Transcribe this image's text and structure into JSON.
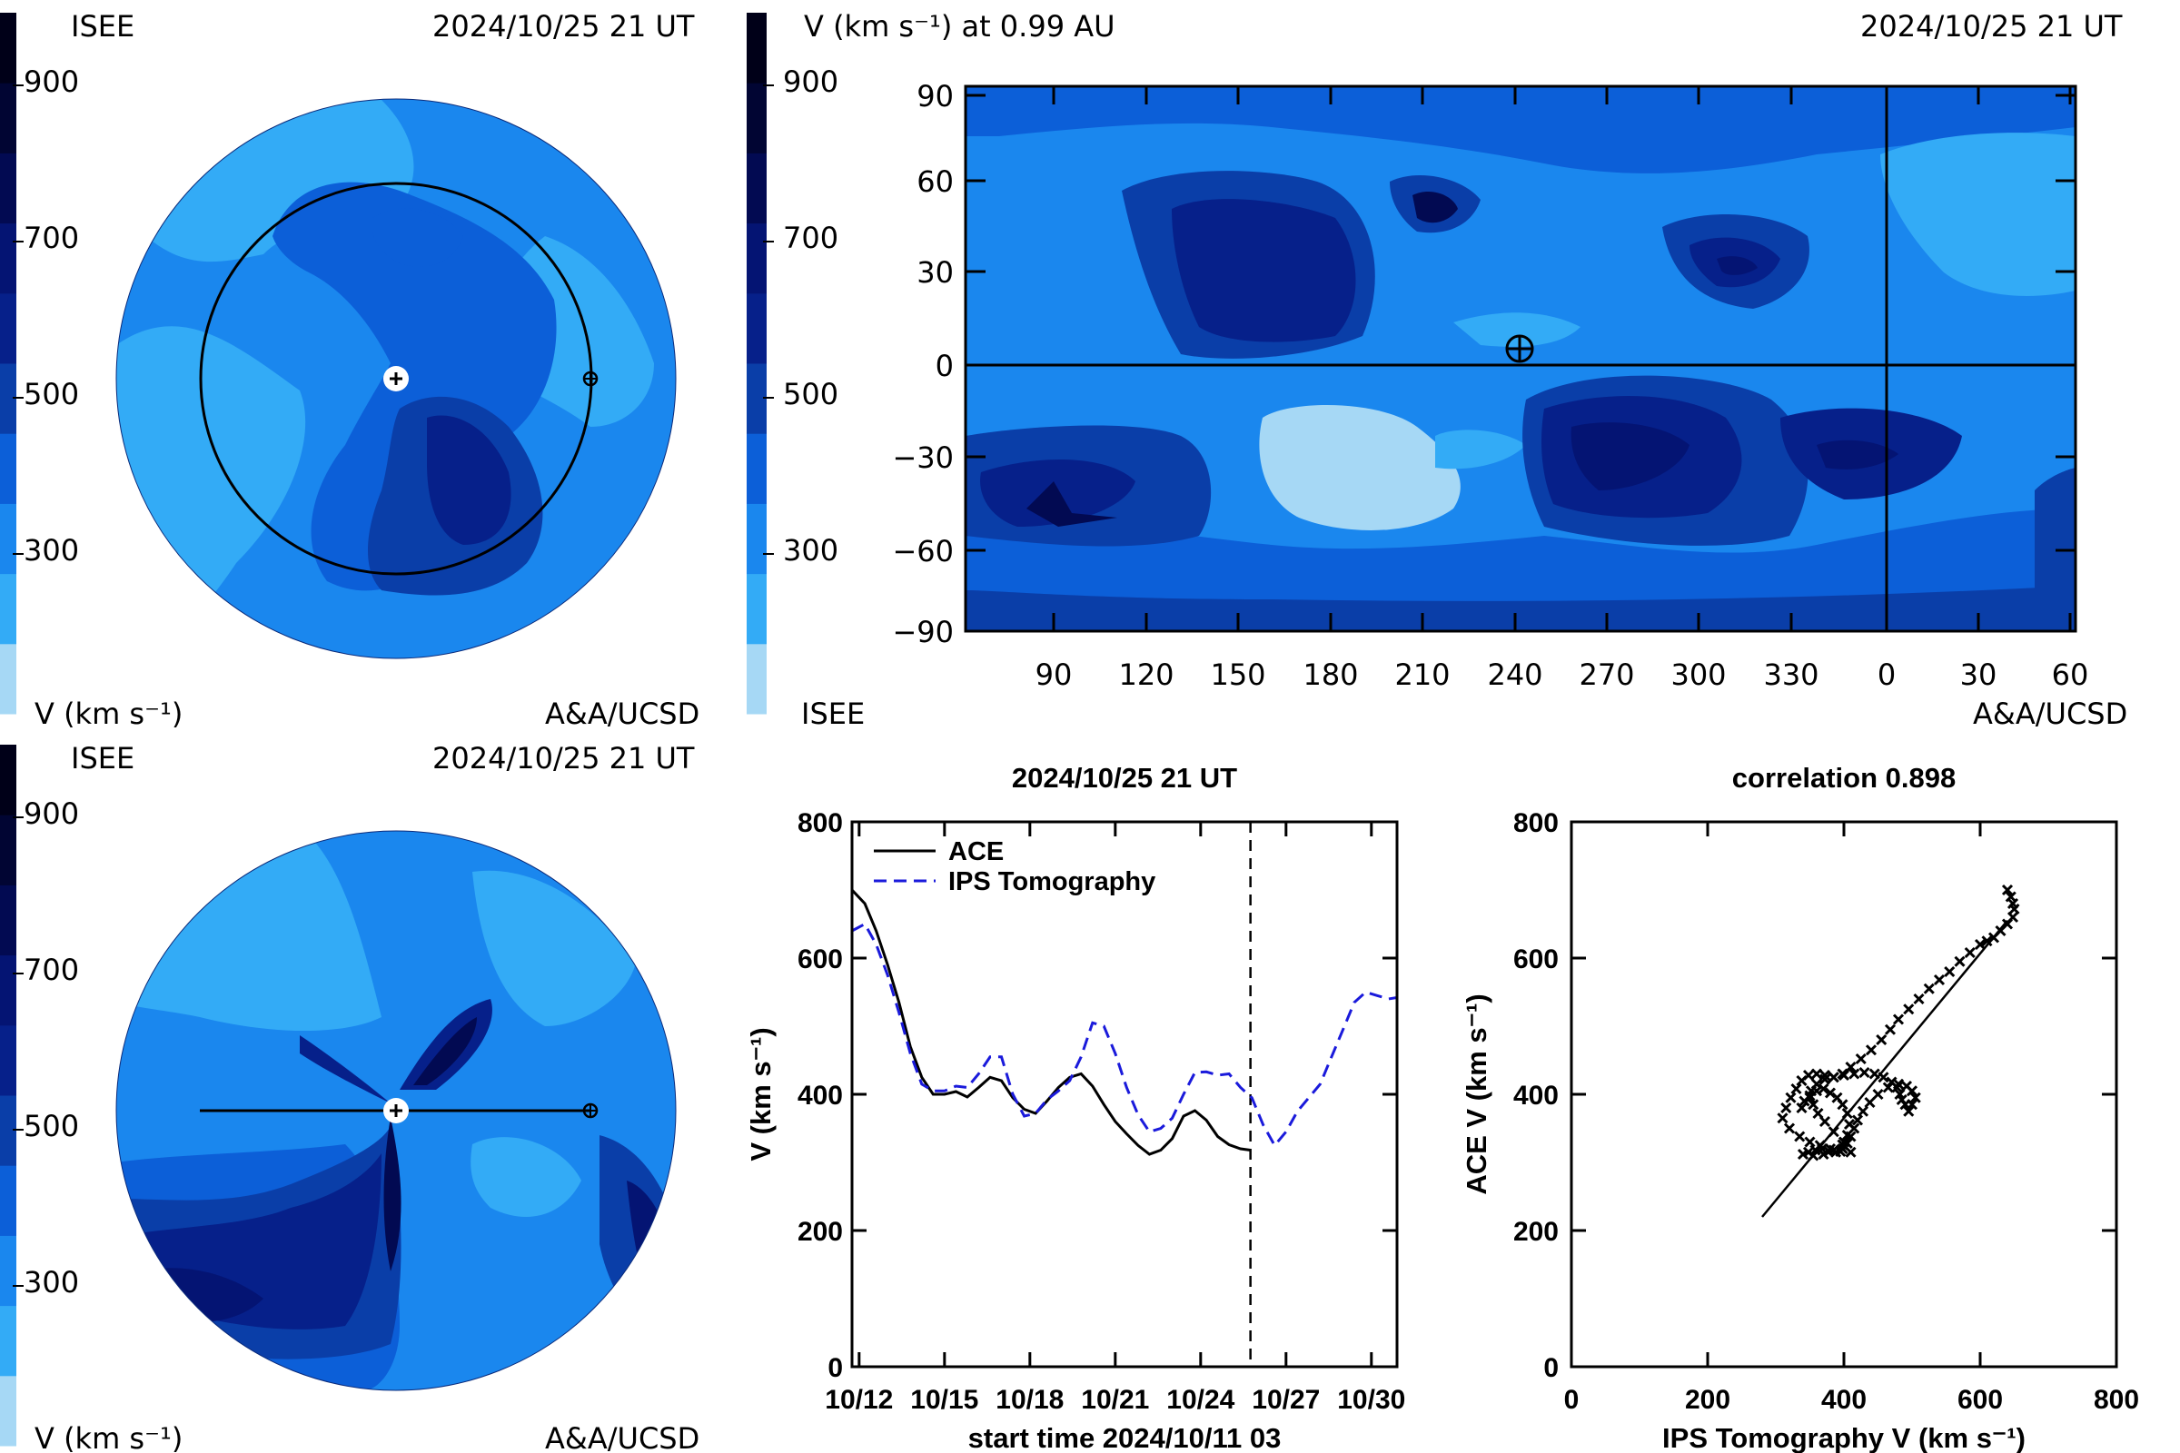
{
  "colors": {
    "levels": [
      "#a6d8f5",
      "#33abf6",
      "#1a87ee",
      "#0c5fd8",
      "#0a3ea8",
      "#06208a",
      "#041473",
      "#020a52",
      "#010533",
      "#000018"
    ],
    "frame": "#000000",
    "ace_line": "#000000",
    "ips_line": "#1a1adb"
  },
  "top_left_panel": {
    "label_org": "ISEE",
    "timestamp": "2024/10/25 21 UT",
    "colorbar_ticks": [
      "900",
      "700",
      "500",
      "300"
    ],
    "unit_label": "V (km s⁻¹)",
    "credit": "A&A/UCSD"
  },
  "bottom_left_panel": {
    "label_org": "ISEE",
    "timestamp": "2024/10/25 21 UT",
    "colorbar_ticks": [
      "900",
      "700",
      "500",
      "300"
    ],
    "unit_label": "V (km s⁻¹)",
    "credit": "A&A/UCSD"
  },
  "synoptic_map": {
    "title": "V (km s⁻¹) at 0.99 AU",
    "timestamp": "2024/10/25 21 UT",
    "colorbar_ticks": [
      "900",
      "700",
      "500",
      "300"
    ],
    "label_org": "ISEE",
    "credit": "A&A/UCSD",
    "lat_ticks": [
      "90",
      "60",
      "30",
      "0",
      "−30",
      "−60",
      "−90"
    ],
    "lon_ticks": [
      "90",
      "120",
      "150",
      "180",
      "210",
      "240",
      "270",
      "300",
      "330",
      "0",
      "30",
      "60"
    ]
  },
  "chart_data": [
    {
      "type": "line",
      "title": "2024/10/25 21 UT",
      "xlabel": "start time 2024/10/11 03",
      "ylabel": "V (km s⁻¹)",
      "ylim": [
        0,
        800
      ],
      "xlim": [
        0.75,
        19.9
      ],
      "x_ticks": [
        1,
        4,
        7,
        10,
        13,
        16,
        19
      ],
      "x_tick_labels": [
        "10/12",
        "10/15",
        "10/18",
        "10/21",
        "10/24",
        "10/27",
        "10/30"
      ],
      "y_ticks": [
        0,
        200,
        400,
        600,
        800
      ],
      "current_time_marker_x": 14.75,
      "legend": "top-left",
      "series": [
        {
          "name": "ACE",
          "style": "solid",
          "x": [
            0.75,
            1.2,
            1.6,
            2.0,
            2.4,
            2.8,
            3.2,
            3.6,
            4.0,
            4.4,
            4.8,
            5.2,
            5.6,
            6.0,
            6.4,
            6.8,
            7.2,
            7.6,
            8.0,
            8.4,
            8.8,
            9.2,
            9.6,
            10.0,
            10.4,
            10.8,
            11.2,
            11.6,
            12.0,
            12.4,
            12.8,
            13.2,
            13.6,
            14.0,
            14.4,
            14.75
          ],
          "values": [
            700,
            680,
            640,
            590,
            535,
            470,
            425,
            400,
            400,
            404,
            396,
            410,
            425,
            420,
            395,
            378,
            372,
            390,
            410,
            425,
            430,
            412,
            385,
            360,
            342,
            325,
            312,
            318,
            335,
            368,
            376,
            362,
            338,
            326,
            320,
            318
          ]
        },
        {
          "name": "IPS Tomography",
          "style": "dashed",
          "x": [
            0.75,
            1.2,
            1.6,
            2.0,
            2.4,
            2.8,
            3.2,
            3.6,
            4.0,
            4.4,
            4.8,
            5.2,
            5.6,
            6.0,
            6.4,
            6.8,
            7.2,
            7.6,
            8.0,
            8.4,
            8.8,
            9.2,
            9.6,
            10.0,
            10.4,
            10.8,
            11.2,
            11.6,
            12.0,
            12.4,
            12.8,
            13.2,
            13.6,
            14.0,
            14.4,
            14.8,
            15.2,
            15.6,
            16.0,
            16.4,
            16.8,
            17.2,
            17.6,
            18.0,
            18.4,
            18.8,
            19.2,
            19.6,
            19.9
          ],
          "values": [
            640,
            650,
            620,
            575,
            520,
            460,
            415,
            405,
            405,
            412,
            410,
            430,
            455,
            455,
            400,
            368,
            372,
            392,
            405,
            420,
            455,
            505,
            500,
            460,
            410,
            370,
            345,
            350,
            365,
            400,
            432,
            433,
            428,
            430,
            410,
            395,
            355,
            325,
            345,
            375,
            395,
            415,
            455,
            495,
            535,
            550,
            545,
            540,
            542
          ]
        }
      ]
    },
    {
      "type": "scatter",
      "title": "correlation 0.898",
      "xlabel": "IPS Tomography V (km s⁻¹)",
      "ylabel": "ACE V (km s⁻¹)",
      "xlim": [
        0,
        800
      ],
      "ylim": [
        0,
        800
      ],
      "x_ticks": [
        0,
        200,
        400,
        600,
        800
      ],
      "y_ticks": [
        0,
        200,
        400,
        600,
        800
      ],
      "fit_line": {
        "x": [
          280,
          640
        ],
        "y": [
          220,
          655
        ]
      },
      "points": [
        [
          640,
          700
        ],
        [
          645,
          690
        ],
        [
          648,
          680
        ],
        [
          650,
          672
        ],
        [
          648,
          660
        ],
        [
          640,
          650
        ],
        [
          630,
          640
        ],
        [
          620,
          630
        ],
        [
          610,
          625
        ],
        [
          600,
          620
        ],
        [
          585,
          608
        ],
        [
          570,
          595
        ],
        [
          555,
          580
        ],
        [
          540,
          568
        ],
        [
          525,
          555
        ],
        [
          510,
          540
        ],
        [
          495,
          525
        ],
        [
          480,
          510
        ],
        [
          468,
          495
        ],
        [
          455,
          480
        ],
        [
          440,
          465
        ],
        [
          425,
          452
        ],
        [
          410,
          440
        ],
        [
          398,
          430
        ],
        [
          385,
          425
        ],
        [
          372,
          428
        ],
        [
          360,
          430
        ],
        [
          348,
          428
        ],
        [
          338,
          420
        ],
        [
          330,
          408
        ],
        [
          322,
          395
        ],
        [
          315,
          380
        ],
        [
          310,
          365
        ],
        [
          320,
          350
        ],
        [
          335,
          338
        ],
        [
          350,
          330
        ],
        [
          365,
          325
        ],
        [
          380,
          320
        ],
        [
          395,
          316
        ],
        [
          410,
          315
        ],
        [
          400,
          330
        ],
        [
          385,
          345
        ],
        [
          372,
          360
        ],
        [
          362,
          372
        ],
        [
          355,
          385
        ],
        [
          350,
          395
        ],
        [
          352,
          405
        ],
        [
          360,
          415
        ],
        [
          372,
          422
        ],
        [
          385,
          425
        ],
        [
          400,
          428
        ],
        [
          415,
          430
        ],
        [
          430,
          432
        ],
        [
          445,
          430
        ],
        [
          458,
          425
        ],
        [
          470,
          418
        ],
        [
          478,
          410
        ],
        [
          482,
          400
        ],
        [
          485,
          392
        ],
        [
          490,
          385
        ],
        [
          495,
          375
        ],
        [
          500,
          385
        ],
        [
          505,
          395
        ],
        [
          500,
          405
        ],
        [
          492,
          412
        ],
        [
          480,
          415
        ],
        [
          465,
          410
        ],
        [
          450,
          400
        ],
        [
          438,
          388
        ],
        [
          428,
          375
        ],
        [
          420,
          362
        ],
        [
          415,
          350
        ],
        [
          410,
          338
        ],
        [
          405,
          328
        ],
        [
          398,
          320
        ],
        [
          388,
          315
        ],
        [
          378,
          316
        ],
        [
          368,
          320
        ],
        [
          358,
          318
        ],
        [
          348,
          315
        ],
        [
          340,
          312
        ],
        [
          355,
          310
        ],
        [
          370,
          312
        ],
        [
          385,
          318
        ],
        [
          398,
          326
        ],
        [
          405,
          340
        ],
        [
          408,
          356
        ],
        [
          405,
          372
        ],
        [
          398,
          385
        ],
        [
          390,
          395
        ],
        [
          380,
          402
        ],
        [
          370,
          408
        ],
        [
          360,
          405
        ],
        [
          350,
          398
        ],
        [
          342,
          390
        ],
        [
          338,
          380
        ]
      ]
    }
  ]
}
